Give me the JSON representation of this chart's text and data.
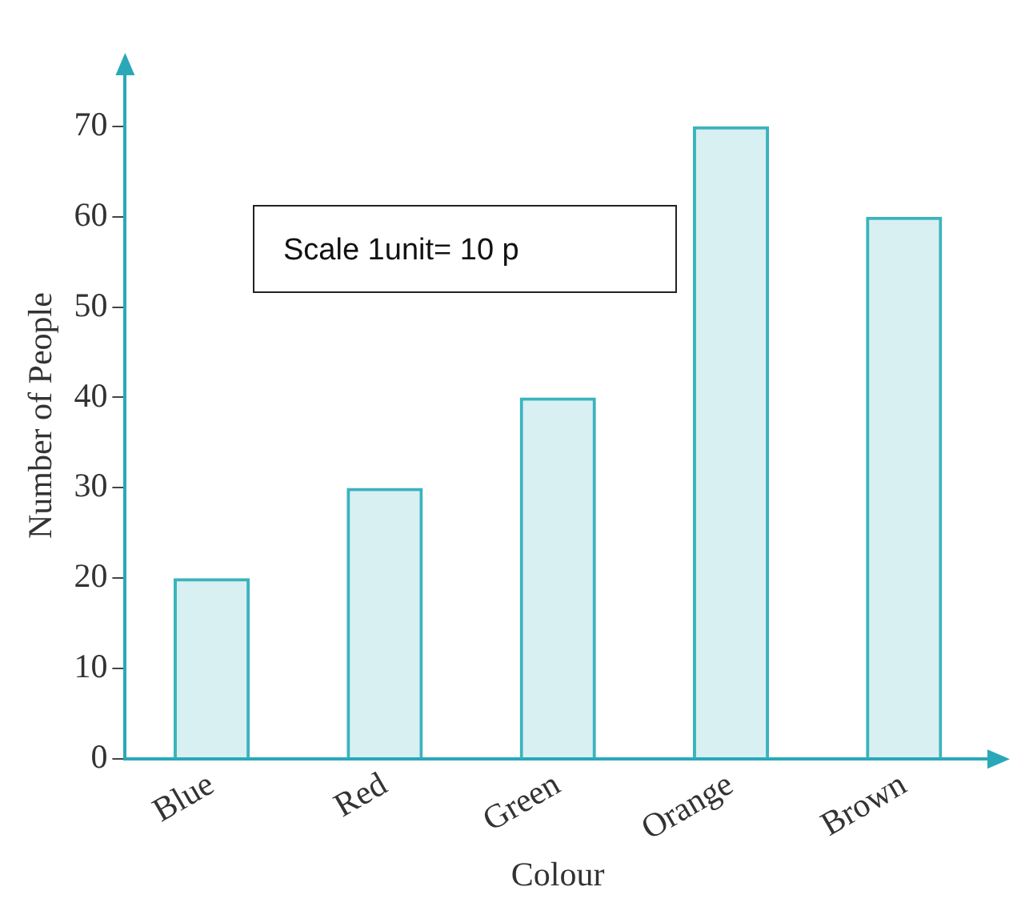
{
  "chart_data": {
    "type": "bar",
    "xlabel": "Colour",
    "ylabel": "Number of People",
    "categories": [
      "Blue",
      "Red",
      "Green",
      "Orange",
      "Brown"
    ],
    "values": [
      20,
      30,
      40,
      70,
      60
    ],
    "color": "#3bb3bd",
    "ylim": [
      0,
      76
    ],
    "yticks": [
      0,
      10,
      20,
      30,
      40,
      50,
      60,
      70
    ],
    "grid": false,
    "legend": false,
    "annotations": [
      "Scale 1unit= 10 p"
    ]
  }
}
